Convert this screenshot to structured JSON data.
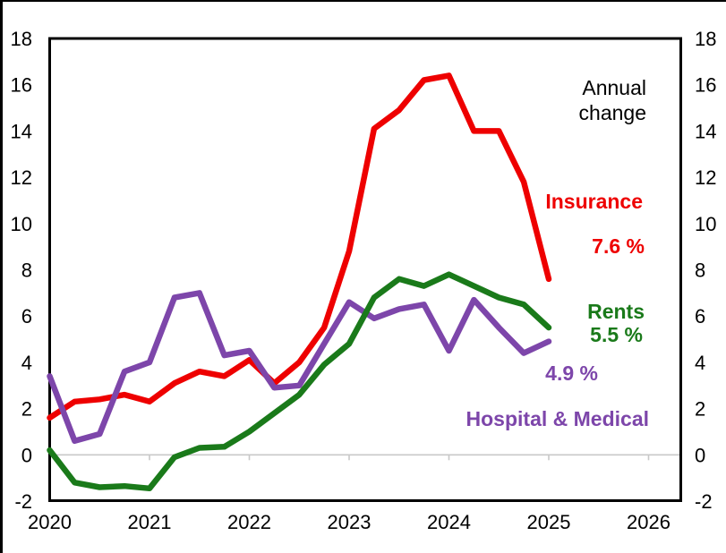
{
  "chart_data": {
    "type": "line",
    "title": "",
    "x_axis": {
      "tick_labels": [
        "2020",
        "2021",
        "2022",
        "2023",
        "2024",
        "2025",
        "2026"
      ],
      "range": [
        2020,
        2026.3
      ],
      "grid": false
    },
    "y_axis": {
      "min": -2,
      "max": 18,
      "tick_values": [
        18,
        16,
        14,
        12,
        10,
        8,
        6,
        4,
        2,
        0,
        -2
      ],
      "tick_labels": [
        "18",
        "16",
        "14",
        "12",
        "10",
        "8",
        "6",
        "4",
        "2",
        "0",
        "-2"
      ],
      "labels_on_both_sides": true,
      "zero_gridline": true
    },
    "x_start": 2020.0,
    "x_step": 0.25,
    "series": [
      {
        "name": "Insurance",
        "color": "#ee0000",
        "latest_value_label": "7.6 %",
        "values": [
          1.6,
          2.3,
          2.4,
          2.6,
          2.3,
          3.1,
          3.6,
          3.4,
          4.1,
          3.1,
          4.0,
          5.5,
          8.8,
          14.1,
          14.9,
          16.2,
          16.4,
          14.0,
          14.0,
          11.8,
          7.6
        ]
      },
      {
        "name": "Hospital & Medical",
        "color": "#7d46aa",
        "latest_value_label": "4.9 %",
        "values": [
          3.4,
          0.6,
          0.9,
          3.6,
          4.0,
          6.8,
          7.0,
          4.3,
          4.5,
          2.9,
          3.0,
          4.8,
          6.6,
          5.9,
          6.3,
          6.5,
          4.5,
          6.7,
          5.5,
          4.4,
          4.9
        ]
      },
      {
        "name": "Rents",
        "color": "#1a7a1a",
        "latest_value_label": "5.5 %",
        "values": [
          0.2,
          -1.2,
          -1.4,
          -1.35,
          -1.45,
          -0.1,
          0.3,
          0.35,
          1.0,
          1.8,
          2.6,
          3.9,
          4.8,
          6.8,
          7.6,
          7.3,
          7.8,
          7.3,
          6.8,
          6.5,
          5.5
        ]
      }
    ],
    "legend_position": "right-inline-annotations"
  },
  "annotations": {
    "annual_change_line1": "Annual",
    "annual_change_line2": "change",
    "insurance_label": "Insurance",
    "insurance_value": "7.6 %",
    "rents_label": "Rents",
    "rents_value": "5.5 %",
    "hospital_value": "4.9 %",
    "hospital_label": "Hospital & Medical"
  },
  "colors": {
    "insurance": "#ee0000",
    "rents": "#1a7a1a",
    "hospital_medical": "#7d46aa",
    "axis": "#000000",
    "zero_line": "#c8c8c8",
    "background": "#ffffff"
  }
}
